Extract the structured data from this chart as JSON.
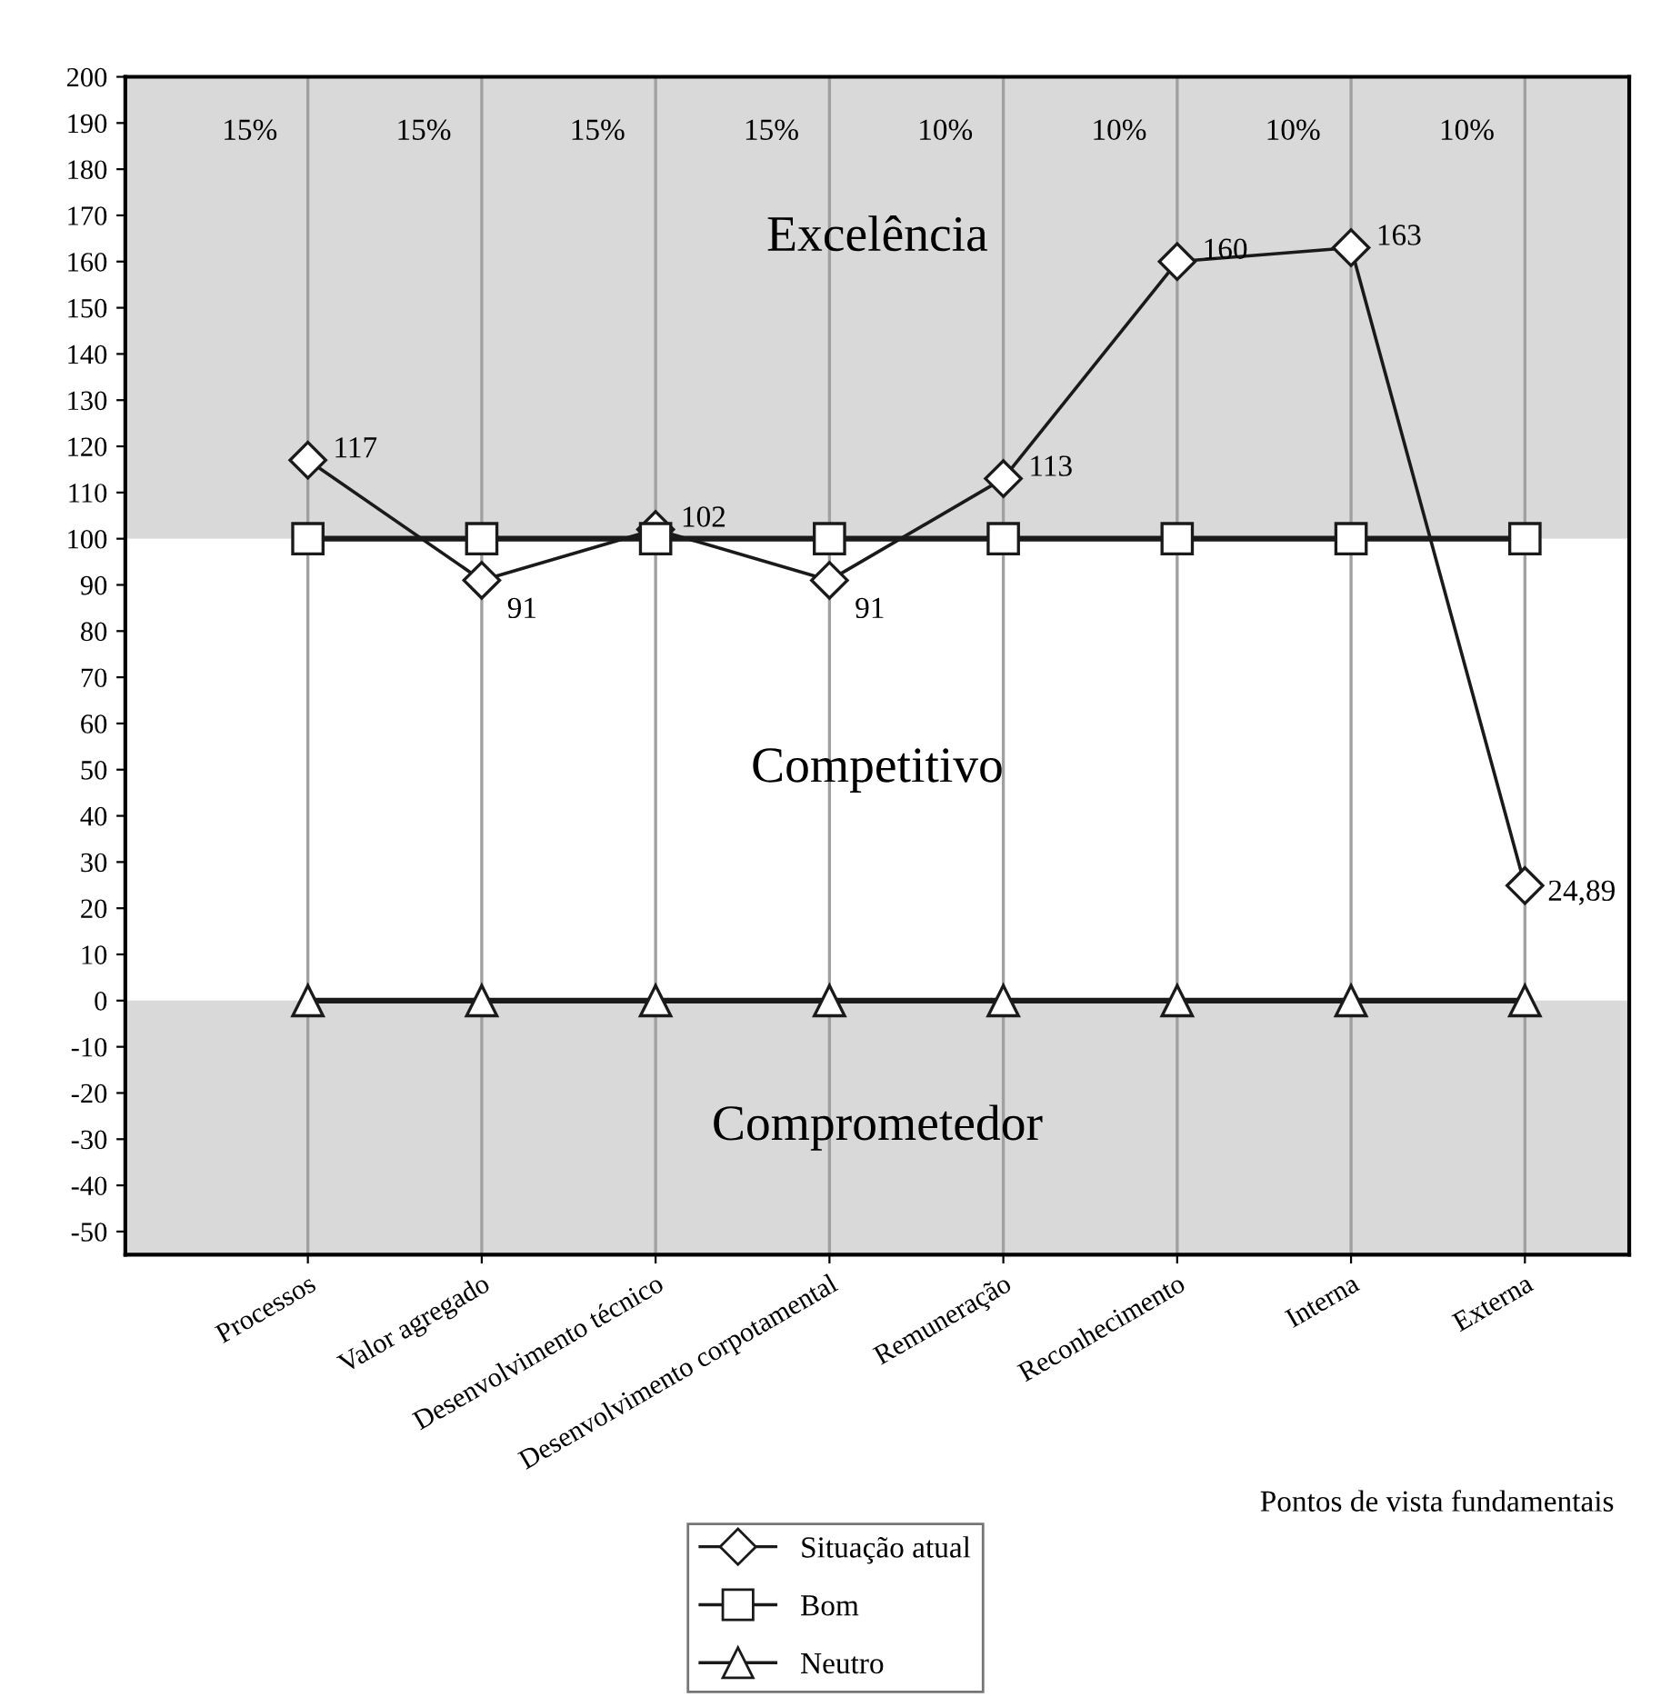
{
  "chart_data": {
    "type": "line",
    "xlabel": "Pontos de vista fundamentais",
    "categories": [
      "Processos",
      "Valor agregado",
      "Desenvolvimento técnico",
      "Desenvolvimento corpotamental",
      "Remuneração",
      "Reconhecimento",
      "Interna",
      "Externa"
    ],
    "series": [
      {
        "name": "Situação atual",
        "color": "#1a1a1a",
        "marker": "diamond",
        "values": [
          117,
          91,
          102,
          91,
          113,
          160,
          163,
          24.89
        ],
        "value_labels": [
          "117",
          "91",
          "102",
          "91",
          "113",
          "160",
          "163",
          "24,89"
        ]
      },
      {
        "name": "Bom",
        "color": "#1a1a1a",
        "marker": "square",
        "values": [
          100,
          100,
          100,
          100,
          100,
          100,
          100,
          100
        ]
      },
      {
        "name": "Neutro",
        "color": "#1a1a1a",
        "marker": "triangle",
        "values": [
          0,
          0,
          0,
          0,
          0,
          0,
          0,
          0
        ]
      }
    ],
    "ylim": [
      -55,
      200
    ],
    "yticks": [
      -50,
      -40,
      -30,
      -20,
      -10,
      0,
      10,
      20,
      30,
      40,
      50,
      60,
      70,
      80,
      90,
      100,
      110,
      120,
      130,
      140,
      150,
      160,
      170,
      180,
      190,
      200
    ],
    "bands": [
      {
        "axis": "y",
        "from": 100,
        "to": 200,
        "label": "Excelência",
        "color": "#d9d9d9"
      },
      {
        "axis": "y",
        "from": 0,
        "to": 100,
        "label": "Competitivo",
        "color": "#ffffff"
      },
      {
        "axis": "y",
        "from": -55,
        "to": 0,
        "label": "Comprometedor",
        "color": "#d9d9d9"
      }
    ],
    "annotations": [
      "15%",
      "15%",
      "15%",
      "15%",
      "10%",
      "10%",
      "10%",
      "10%"
    ],
    "grid": "x",
    "legend": "bottom",
    "line_style": "solid"
  }
}
